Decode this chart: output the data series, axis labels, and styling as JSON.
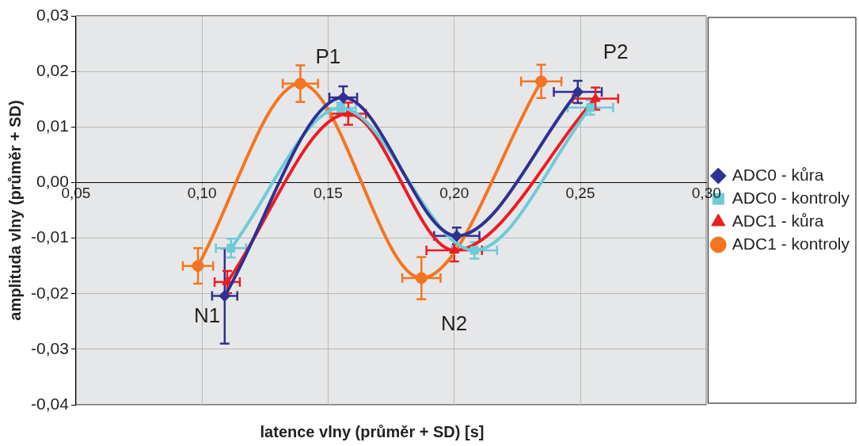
{
  "chart_data": {
    "type": "line",
    "xlabel": "latence vlny (průměr + SD) [s]",
    "ylabel": "amplituda vlny (průměr + SD)",
    "xlim": [
      0.05,
      0.3
    ],
    "xticks": [
      {
        "value": 0.05,
        "label": "0,05"
      },
      {
        "value": 0.1,
        "label": "0,10"
      },
      {
        "value": 0.15,
        "label": "0,15"
      },
      {
        "value": 0.2,
        "label": "0,20"
      },
      {
        "value": 0.25,
        "label": "0,25"
      },
      {
        "value": 0.3,
        "label": "0,30"
      }
    ],
    "ylim": [
      -0.04,
      0.03
    ],
    "yticks": [
      {
        "value": -0.04,
        "label": "-0,04"
      },
      {
        "value": -0.03,
        "label": "-0,03"
      },
      {
        "value": -0.02,
        "label": "-0,02"
      },
      {
        "value": -0.01,
        "label": "-0,01"
      },
      {
        "value": 0,
        "label": "0,00"
      },
      {
        "value": 0.01,
        "label": "0,01"
      },
      {
        "value": 0.02,
        "label": "0,02"
      },
      {
        "value": 0.03,
        "label": "0,03"
      }
    ],
    "grid": true,
    "legend": "right",
    "series": [
      {
        "name": "ADC0 - kůra",
        "color": "#2e3192",
        "marker": "diamond",
        "x": [
          0.109,
          0.156,
          0.201,
          0.249
        ],
        "values": [
          -0.0204,
          0.0153,
          -0.0096,
          0.0163
        ],
        "errors": [
          0.0086,
          0.002,
          0.0015,
          0.002
        ],
        "xerrors": [
          0.005,
          0.0055,
          0.009,
          0.0095
        ]
      },
      {
        "name": "ADC0 - kontroly",
        "color": "#6dcbd8",
        "marker": "square",
        "x": [
          0.1115,
          0.155,
          0.208,
          0.254
        ],
        "values": [
          -0.0118,
          0.0134,
          -0.0122,
          0.0135
        ],
        "errors": [
          0.0017,
          0.001,
          0.0015,
          0.0013
        ],
        "xerrors": [
          0.006,
          0.006,
          0.009,
          0.009
        ]
      },
      {
        "name": "ADC1 - kůra",
        "color": "#ed1c24",
        "marker": "triangle",
        "x": [
          0.11,
          0.158,
          0.2,
          0.256
        ],
        "values": [
          -0.0179,
          0.0124,
          -0.0122,
          0.0151
        ],
        "errors": [
          0.002,
          0.002,
          0.002,
          0.002
        ],
        "xerrors": [
          0.005,
          0.007,
          0.011,
          0.009
        ]
      },
      {
        "name": "ADC1 - kontroly",
        "color": "#f47521",
        "marker": "circle",
        "x": [
          0.0984,
          0.139,
          0.187,
          0.2345
        ],
        "values": [
          -0.015,
          0.0178,
          -0.0172,
          0.0182
        ],
        "errors": [
          0.0032,
          0.0033,
          0.0038,
          0.003
        ],
        "xerrors": [
          0.006,
          0.007,
          0.0076,
          0.008
        ]
      }
    ],
    "annotations": [
      "N1",
      "P1",
      "N2",
      "P2"
    ]
  }
}
